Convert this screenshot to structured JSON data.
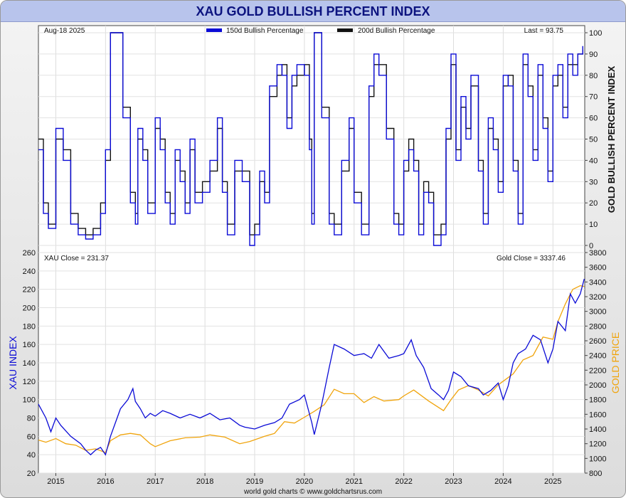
{
  "header": {
    "title": "XAU GOLD BULLISH PERCENT INDEX"
  },
  "footer": {
    "credit": "world gold charts © www.goldchartsrus.com"
  },
  "colors": {
    "blue": "#0b0bd6",
    "black": "#111111",
    "orange": "#f0a40c",
    "title_bar": "#b8c4ec",
    "title_text": "#0c137f"
  },
  "chart_data": [
    {
      "type": "line",
      "panel": "top",
      "date_label": "Aug-18  2025",
      "last_label": "Last = 93.75",
      "ylabel": "GOLD BULLISH PERCENT INDEX",
      "ylim": [
        0,
        100
      ],
      "y_ticks": [
        "0",
        "10",
        "20",
        "30",
        "40",
        "50",
        "60",
        "70",
        "80",
        "90",
        "100"
      ],
      "legend": [
        {
          "name": "150d Bullish Percentage",
          "color": "#0b0bd6"
        },
        {
          "name": "200d Bullish Percentage",
          "color": "#111111"
        }
      ],
      "series": [
        {
          "name": "150d Bullish Percentage",
          "x": [
            2014.65,
            2014.75,
            2014.85,
            2015.0,
            2015.15,
            2015.3,
            2015.45,
            2015.6,
            2015.75,
            2015.9,
            2016.0,
            2016.1,
            2016.2,
            2016.35,
            2016.5,
            2016.6,
            2016.65,
            2016.75,
            2016.85,
            2017.0,
            2017.1,
            2017.2,
            2017.3,
            2017.4,
            2017.5,
            2017.6,
            2017.7,
            2017.8,
            2017.95,
            2018.1,
            2018.25,
            2018.35,
            2018.45,
            2018.6,
            2018.75,
            2018.9,
            2019.0,
            2019.1,
            2019.2,
            2019.3,
            2019.45,
            2019.55,
            2019.65,
            2019.75,
            2019.85,
            2020.0,
            2020.1,
            2020.15,
            2020.2,
            2020.35,
            2020.5,
            2020.6,
            2020.75,
            2020.9,
            2021.0,
            2021.15,
            2021.3,
            2021.4,
            2021.5,
            2021.65,
            2021.8,
            2021.9,
            2022.0,
            2022.1,
            2022.2,
            2022.3,
            2022.4,
            2022.5,
            2022.6,
            2022.75,
            2022.85,
            2022.95,
            2023.05,
            2023.15,
            2023.25,
            2023.35,
            2023.5,
            2023.6,
            2023.7,
            2023.8,
            2023.9,
            2024.0,
            2024.1,
            2024.2,
            2024.3,
            2024.4,
            2024.5,
            2024.6,
            2024.7,
            2024.8,
            2024.9,
            2025.0,
            2025.1,
            2025.2,
            2025.3,
            2025.4,
            2025.5,
            2025.6
          ],
          "values": [
            45,
            15,
            8,
            55,
            40,
            10,
            5,
            3,
            5,
            15,
            45,
            100,
            100,
            60,
            20,
            10,
            55,
            40,
            15,
            60,
            45,
            20,
            10,
            45,
            30,
            15,
            50,
            20,
            25,
            40,
            60,
            25,
            5,
            40,
            30,
            0,
            5,
            35,
            20,
            75,
            85,
            80,
            55,
            80,
            85,
            80,
            45,
            10,
            100,
            60,
            10,
            5,
            40,
            60,
            20,
            5,
            75,
            90,
            80,
            50,
            10,
            5,
            40,
            45,
            35,
            5,
            25,
            20,
            0,
            5,
            55,
            90,
            40,
            70,
            50,
            80,
            35,
            10,
            60,
            45,
            25,
            80,
            75,
            35,
            10,
            90,
            70,
            40,
            85,
            55,
            30,
            80,
            85,
            60,
            90,
            80,
            90,
            93.75
          ]
        },
        {
          "name": "200d Bullish Percentage",
          "x": [
            2014.65,
            2014.75,
            2014.85,
            2015.0,
            2015.15,
            2015.3,
            2015.45,
            2015.6,
            2015.75,
            2015.9,
            2016.0,
            2016.1,
            2016.2,
            2016.35,
            2016.5,
            2016.6,
            2016.65,
            2016.75,
            2016.85,
            2017.0,
            2017.1,
            2017.2,
            2017.3,
            2017.4,
            2017.5,
            2017.6,
            2017.7,
            2017.8,
            2017.95,
            2018.1,
            2018.25,
            2018.35,
            2018.45,
            2018.6,
            2018.75,
            2018.9,
            2019.0,
            2019.1,
            2019.2,
            2019.3,
            2019.45,
            2019.55,
            2019.65,
            2019.75,
            2019.85,
            2020.0,
            2020.1,
            2020.15,
            2020.2,
            2020.35,
            2020.5,
            2020.6,
            2020.75,
            2020.9,
            2021.0,
            2021.15,
            2021.3,
            2021.4,
            2021.5,
            2021.65,
            2021.8,
            2021.9,
            2022.0,
            2022.1,
            2022.2,
            2022.3,
            2022.4,
            2022.5,
            2022.6,
            2022.75,
            2022.85,
            2022.95,
            2023.05,
            2023.15,
            2023.25,
            2023.35,
            2023.5,
            2023.6,
            2023.7,
            2023.8,
            2023.9,
            2024.0,
            2024.1,
            2024.2,
            2024.3,
            2024.4,
            2024.5,
            2024.6,
            2024.7,
            2024.8,
            2024.9,
            2025.0,
            2025.1,
            2025.2,
            2025.3,
            2025.4,
            2025.5,
            2025.6
          ],
          "values": [
            50,
            20,
            10,
            50,
            45,
            15,
            8,
            5,
            8,
            20,
            40,
            100,
            100,
            65,
            25,
            15,
            50,
            45,
            20,
            55,
            50,
            25,
            15,
            40,
            35,
            20,
            45,
            25,
            30,
            35,
            55,
            30,
            10,
            35,
            35,
            5,
            10,
            30,
            25,
            70,
            80,
            85,
            60,
            75,
            80,
            85,
            50,
            15,
            100,
            65,
            15,
            10,
            35,
            55,
            25,
            10,
            70,
            85,
            85,
            55,
            15,
            10,
            35,
            50,
            40,
            10,
            30,
            25,
            5,
            10,
            50,
            85,
            45,
            65,
            55,
            75,
            40,
            15,
            55,
            50,
            30,
            75,
            80,
            40,
            15,
            85,
            75,
            45,
            80,
            60,
            35,
            75,
            80,
            65,
            85,
            85,
            90,
            92
          ]
        }
      ]
    },
    {
      "type": "line",
      "panel": "bottom",
      "xau_label": "XAU Close = 231.37",
      "gold_label": "Gold Close = 3337.46",
      "ylabel_left": "XAU INDEX",
      "ylabel_right": "GOLD PRICE",
      "ylim_left": [
        20,
        260
      ],
      "ylim_right": [
        800,
        3800
      ],
      "y_ticks_left": [
        "20",
        "40",
        "60",
        "80",
        "100",
        "120",
        "140",
        "160",
        "180",
        "200",
        "220",
        "240",
        "260"
      ],
      "y_ticks_right": [
        "800",
        "1000",
        "1200",
        "1400",
        "1600",
        "1800",
        "2000",
        "2200",
        "2400",
        "2600",
        "2800",
        "3000",
        "3200",
        "3400",
        "3600",
        "3800"
      ],
      "x_ticks": [
        "2015",
        "2016",
        "2017",
        "2018",
        "2019",
        "2020",
        "2021",
        "2022",
        "2023",
        "2024",
        "2025"
      ],
      "xlim": [
        2014.65,
        2025.64
      ],
      "series": [
        {
          "name": "XAU Close",
          "axis": "left",
          "x": [
            2014.65,
            2014.8,
            2014.9,
            2015.0,
            2015.1,
            2015.3,
            2015.5,
            2015.6,
            2015.7,
            2015.8,
            2015.9,
            2016.0,
            2016.1,
            2016.2,
            2016.3,
            2016.45,
            2016.55,
            2016.6,
            2016.7,
            2016.8,
            2016.9,
            2017.0,
            2017.15,
            2017.3,
            2017.5,
            2017.7,
            2017.9,
            2018.1,
            2018.3,
            2018.5,
            2018.7,
            2018.8,
            2019.0,
            2019.2,
            2019.4,
            2019.55,
            2019.7,
            2019.9,
            2020.0,
            2020.15,
            2020.2,
            2020.35,
            2020.5,
            2020.6,
            2020.8,
            2021.0,
            2021.2,
            2021.35,
            2021.5,
            2021.7,
            2021.9,
            2022.0,
            2022.15,
            2022.25,
            2022.4,
            2022.55,
            2022.7,
            2022.8,
            2022.9,
            2023.0,
            2023.15,
            2023.3,
            2023.5,
            2023.6,
            2023.75,
            2023.9,
            2024.0,
            2024.1,
            2024.2,
            2024.3,
            2024.45,
            2024.6,
            2024.75,
            2024.9,
            2025.0,
            2025.1,
            2025.25,
            2025.35,
            2025.45,
            2025.55,
            2025.63
          ],
          "values": [
            95,
            80,
            65,
            80,
            72,
            60,
            52,
            45,
            40,
            45,
            48,
            40,
            60,
            75,
            90,
            100,
            112,
            98,
            90,
            80,
            85,
            82,
            88,
            85,
            80,
            84,
            80,
            85,
            78,
            80,
            72,
            70,
            68,
            72,
            75,
            80,
            95,
            100,
            105,
            75,
            62,
            95,
            135,
            160,
            155,
            148,
            150,
            145,
            160,
            145,
            148,
            150,
            165,
            148,
            135,
            112,
            105,
            100,
            110,
            130,
            125,
            115,
            112,
            105,
            110,
            118,
            100,
            115,
            140,
            150,
            155,
            170,
            165,
            140,
            155,
            185,
            175,
            215,
            205,
            215,
            231.37
          ]
        },
        {
          "name": "Gold Close",
          "axis": "right",
          "x": [
            2014.65,
            2014.8,
            2015.0,
            2015.2,
            2015.4,
            2015.6,
            2015.8,
            2016.0,
            2016.1,
            2016.3,
            2016.5,
            2016.7,
            2016.9,
            2017.0,
            2017.3,
            2017.6,
            2017.9,
            2018.1,
            2018.4,
            2018.7,
            2018.9,
            2019.2,
            2019.4,
            2019.6,
            2019.8,
            2020.0,
            2020.2,
            2020.4,
            2020.6,
            2020.8,
            2021.0,
            2021.2,
            2021.4,
            2021.6,
            2021.9,
            2022.0,
            2022.2,
            2022.5,
            2022.8,
            2022.95,
            2023.1,
            2023.3,
            2023.5,
            2023.7,
            2023.9,
            2024.0,
            2024.2,
            2024.4,
            2024.6,
            2024.8,
            2025.0,
            2025.1,
            2025.25,
            2025.4,
            2025.55,
            2025.63
          ],
          "values": [
            1250,
            1220,
            1270,
            1200,
            1180,
            1110,
            1130,
            1080,
            1240,
            1320,
            1340,
            1320,
            1200,
            1160,
            1240,
            1280,
            1290,
            1320,
            1290,
            1200,
            1230,
            1300,
            1340,
            1500,
            1480,
            1560,
            1640,
            1730,
            1940,
            1880,
            1880,
            1760,
            1840,
            1780,
            1800,
            1850,
            1930,
            1780,
            1650,
            1800,
            1930,
            1990,
            1930,
            1850,
            2000,
            2050,
            2150,
            2340,
            2400,
            2650,
            2620,
            2860,
            3100,
            3300,
            3350,
            3337.46
          ]
        }
      ]
    }
  ]
}
